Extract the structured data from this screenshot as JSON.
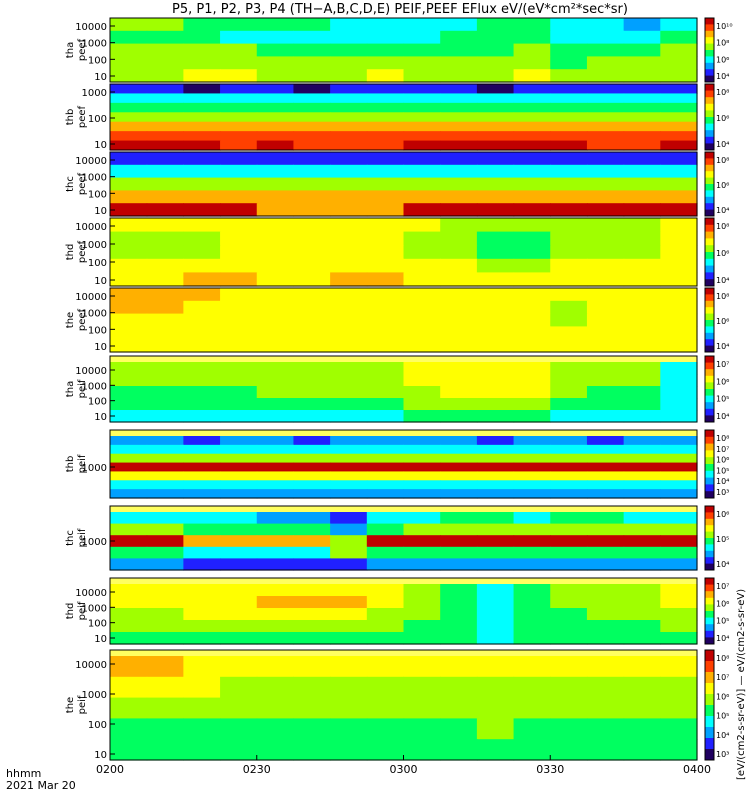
{
  "title": "P5, P1, P2, P3, P4 (TH−A,B,C,D,E) PEIF,PEEF EFlux eV/(eV*cm²*sec*sr)",
  "footer": {
    "axis_name": "hhmm",
    "date": "2021 Mar 20"
  },
  "colorbar_unit_label": "[eV/(cm2-s-sr-eV)] — eV/(cm2-s-sr-eV)",
  "colors": {
    "palette": [
      "#200060",
      "#2020ff",
      "#00a0ff",
      "#00ffff",
      "#00ff60",
      "#a0ff00",
      "#ffff00",
      "#ffb000",
      "#ff4000",
      "#c00000"
    ]
  },
  "chart_data": {
    "type": "heatmap",
    "x_ticks": [
      "0200",
      "0230",
      "0300",
      "0330",
      "0400"
    ],
    "panels": [
      {
        "label_1": "tha",
        "label_2": "peef",
        "y_ticks": [
          "10000",
          "1000",
          "100",
          "10"
        ],
        "cbar_ticks": [
          "10¹⁰",
          "10⁸",
          "10⁶",
          "10⁴"
        ],
        "rows": [
          [
            5,
            5,
            4,
            4,
            4,
            4,
            3,
            3,
            3,
            3,
            4,
            4,
            3,
            3,
            2,
            3
          ],
          [
            4,
            4,
            4,
            3,
            3,
            3,
            3,
            3,
            3,
            4,
            4,
            4,
            3,
            3,
            3,
            4
          ],
          [
            5,
            5,
            5,
            5,
            4,
            4,
            4,
            4,
            4,
            4,
            4,
            5,
            4,
            4,
            4,
            5
          ],
          [
            5,
            5,
            5,
            5,
            5,
            5,
            5,
            5,
            5,
            5,
            5,
            5,
            4,
            5,
            5,
            5
          ],
          [
            5,
            5,
            6,
            6,
            5,
            5,
            5,
            6,
            5,
            5,
            5,
            6,
            5,
            5,
            5,
            5
          ]
        ]
      },
      {
        "label_1": "thb",
        "label_2": "peef",
        "y_ticks": [
          "1000",
          "100",
          "10"
        ],
        "cbar_ticks": [
          "10⁸",
          "10⁶",
          "10⁴"
        ],
        "rows": [
          [
            1,
            1,
            0,
            1,
            1,
            0,
            1,
            1,
            1,
            1,
            0,
            1,
            1,
            1,
            1,
            1
          ],
          [
            3,
            3,
            3,
            3,
            3,
            3,
            3,
            3,
            3,
            3,
            3,
            3,
            3,
            3,
            3,
            3
          ],
          [
            4,
            4,
            4,
            4,
            4,
            4,
            4,
            4,
            4,
            4,
            4,
            4,
            4,
            4,
            4,
            4
          ],
          [
            5,
            5,
            5,
            5,
            5,
            5,
            5,
            5,
            5,
            5,
            5,
            5,
            5,
            5,
            5,
            5
          ],
          [
            7,
            7,
            7,
            7,
            7,
            7,
            7,
            7,
            7,
            7,
            7,
            7,
            7,
            7,
            7,
            7
          ],
          [
            8,
            8,
            8,
            8,
            8,
            8,
            8,
            8,
            8,
            8,
            8,
            8,
            8,
            8,
            8,
            8
          ],
          [
            9,
            9,
            9,
            8,
            9,
            8,
            8,
            8,
            9,
            9,
            9,
            9,
            9,
            8,
            8,
            9
          ]
        ]
      },
      {
        "label_1": "thc",
        "label_2": "peef",
        "y_ticks": [
          "10000",
          "1000",
          "100",
          "10"
        ],
        "cbar_ticks": [
          "10⁸",
          "10⁶",
          "10⁴"
        ],
        "rows": [
          [
            1,
            1,
            1,
            1,
            1,
            1,
            1,
            1,
            1,
            1,
            1,
            1,
            1,
            1,
            1,
            1
          ],
          [
            3,
            3,
            3,
            3,
            3,
            3,
            3,
            3,
            3,
            3,
            3,
            3,
            3,
            3,
            3,
            3
          ],
          [
            5,
            5,
            5,
            5,
            5,
            5,
            5,
            5,
            5,
            5,
            5,
            5,
            5,
            5,
            5,
            5
          ],
          [
            7,
            7,
            7,
            7,
            7,
            7,
            7,
            7,
            7,
            7,
            7,
            7,
            7,
            7,
            7,
            7
          ],
          [
            9,
            9,
            9,
            9,
            7,
            7,
            7,
            7,
            9,
            9,
            9,
            9,
            9,
            9,
            9,
            9
          ]
        ]
      },
      {
        "label_1": "thd",
        "label_2": "peef",
        "y_ticks": [
          "10000",
          "1000",
          "100",
          "10"
        ],
        "cbar_ticks": [
          "10⁸",
          "10⁶",
          "10⁴"
        ],
        "rows": [
          [
            6,
            6,
            6,
            6,
            6,
            6,
            6,
            6,
            6,
            5,
            5,
            5,
            5,
            5,
            5,
            6
          ],
          [
            5,
            5,
            5,
            6,
            6,
            6,
            6,
            6,
            5,
            5,
            4,
            4,
            5,
            5,
            5,
            6
          ],
          [
            5,
            5,
            5,
            6,
            6,
            6,
            6,
            6,
            5,
            5,
            4,
            4,
            5,
            5,
            5,
            6
          ],
          [
            6,
            6,
            6,
            6,
            6,
            6,
            6,
            6,
            6,
            6,
            5,
            5,
            6,
            6,
            6,
            6
          ],
          [
            6,
            6,
            7,
            7,
            6,
            6,
            7,
            7,
            6,
            6,
            6,
            6,
            6,
            6,
            6,
            6
          ]
        ]
      },
      {
        "label_1": "the",
        "label_2": "peef",
        "y_ticks": [
          "10000",
          "1000",
          "100",
          "10"
        ],
        "cbar_ticks": [
          "10⁸",
          "10⁶",
          "10⁴"
        ],
        "rows": [
          [
            7,
            7,
            7,
            6,
            6,
            6,
            6,
            6,
            6,
            6,
            6,
            6,
            6,
            6,
            6,
            6
          ],
          [
            7,
            7,
            6,
            6,
            6,
            6,
            6,
            6,
            6,
            6,
            6,
            6,
            5,
            6,
            6,
            6
          ],
          [
            6,
            6,
            6,
            6,
            6,
            6,
            6,
            6,
            6,
            6,
            6,
            6,
            5,
            6,
            6,
            6
          ],
          [
            6,
            6,
            6,
            6,
            6,
            6,
            6,
            6,
            6,
            6,
            6,
            6,
            6,
            6,
            6,
            6
          ],
          [
            6,
            6,
            6,
            6,
            6,
            6,
            6,
            6,
            6,
            6,
            6,
            6,
            6,
            6,
            6,
            6
          ]
        ]
      },
      {
        "label_1": "tha",
        "label_2": "peif",
        "y_ticks": [
          "10000",
          "1000",
          "100",
          "10"
        ],
        "cbar_ticks": [
          "10⁷",
          "10⁶",
          "10⁵",
          "10⁴"
        ],
        "rows": [
          [
            5,
            5,
            5,
            5,
            5,
            5,
            5,
            5,
            6,
            6,
            6,
            6,
            5,
            5,
            5,
            3
          ],
          [
            5,
            5,
            5,
            5,
            5,
            5,
            5,
            5,
            6,
            6,
            6,
            6,
            5,
            5,
            5,
            3
          ],
          [
            4,
            4,
            4,
            4,
            5,
            5,
            5,
            5,
            5,
            6,
            6,
            6,
            5,
            4,
            4,
            3
          ],
          [
            4,
            4,
            4,
            4,
            4,
            4,
            4,
            4,
            5,
            5,
            5,
            5,
            4,
            4,
            4,
            3
          ],
          [
            3,
            3,
            3,
            3,
            3,
            3,
            3,
            3,
            4,
            4,
            4,
            4,
            3,
            3,
            3,
            3
          ]
        ]
      },
      {
        "label_1": "thb",
        "label_2": "peif",
        "y_ticks": [
          "1000"
        ],
        "cbar_ticks": [
          "10⁸",
          "10⁷",
          "10⁶",
          "10⁵",
          "10⁴",
          "10³"
        ],
        "rows": [
          [
            2,
            2,
            1,
            2,
            2,
            1,
            2,
            2,
            2,
            2,
            1,
            2,
            2,
            1,
            2,
            2
          ],
          [
            3,
            3,
            3,
            3,
            3,
            3,
            3,
            3,
            3,
            3,
            3,
            3,
            3,
            3,
            3,
            3
          ],
          [
            5,
            5,
            5,
            5,
            5,
            5,
            5,
            5,
            5,
            5,
            5,
            5,
            5,
            5,
            5,
            5
          ],
          [
            9,
            9,
            9,
            9,
            9,
            9,
            9,
            9,
            9,
            9,
            9,
            9,
            9,
            9,
            9,
            9
          ],
          [
            6,
            6,
            6,
            6,
            6,
            6,
            6,
            6,
            6,
            6,
            6,
            6,
            6,
            6,
            6,
            6
          ],
          [
            3,
            3,
            3,
            3,
            3,
            3,
            3,
            3,
            3,
            3,
            3,
            3,
            3,
            3,
            3,
            3
          ],
          [
            2,
            2,
            2,
            2,
            2,
            2,
            2,
            2,
            2,
            2,
            2,
            2,
            2,
            2,
            2,
            2
          ]
        ]
      },
      {
        "label_1": "thc",
        "label_2": "peif",
        "y_ticks": [
          "1000"
        ],
        "cbar_ticks": [
          "10⁶",
          "10⁵",
          "10⁴"
        ],
        "rows": [
          [
            3,
            3,
            3,
            3,
            2,
            2,
            1,
            3,
            3,
            4,
            4,
            3,
            4,
            4,
            3,
            3
          ],
          [
            5,
            5,
            4,
            4,
            4,
            4,
            2,
            4,
            5,
            5,
            5,
            5,
            5,
            5,
            5,
            5
          ],
          [
            9,
            9,
            7,
            7,
            7,
            7,
            5,
            9,
            9,
            9,
            9,
            9,
            9,
            9,
            9,
            9
          ],
          [
            4,
            4,
            3,
            3,
            3,
            3,
            5,
            4,
            4,
            4,
            4,
            4,
            4,
            4,
            4,
            4
          ],
          [
            2,
            2,
            1,
            1,
            1,
            1,
            1,
            2,
            2,
            2,
            2,
            2,
            2,
            2,
            2,
            2
          ]
        ]
      },
      {
        "label_1": "thd",
        "label_2": "peif",
        "y_ticks": [
          "10000",
          "1000",
          "100",
          "10"
        ],
        "cbar_ticks": [
          "10⁷",
          "10⁶",
          "10⁵",
          "10⁴"
        ],
        "rows": [
          [
            6,
            6,
            6,
            6,
            6,
            6,
            6,
            6,
            5,
            4,
            3,
            4,
            5,
            5,
            5,
            6
          ],
          [
            6,
            6,
            6,
            6,
            7,
            7,
            7,
            6,
            5,
            4,
            3,
            4,
            5,
            5,
            5,
            6
          ],
          [
            5,
            5,
            6,
            6,
            6,
            6,
            6,
            5,
            5,
            4,
            3,
            4,
            4,
            5,
            5,
            5
          ],
          [
            5,
            5,
            5,
            5,
            5,
            5,
            5,
            5,
            4,
            4,
            3,
            4,
            4,
            4,
            4,
            5
          ],
          [
            4,
            4,
            4,
            4,
            4,
            4,
            4,
            4,
            4,
            4,
            3,
            4,
            4,
            4,
            4,
            4
          ]
        ]
      },
      {
        "label_1": "the",
        "label_2": "peif",
        "y_ticks": [
          "10000",
          "1000",
          "100",
          "10"
        ],
        "cbar_ticks": [
          "10⁸",
          "10⁷",
          "10⁶",
          "10⁵",
          "10⁴",
          "10³"
        ],
        "rows": [
          [
            7,
            7,
            6,
            6,
            6,
            6,
            6,
            6,
            6,
            6,
            6,
            6,
            6,
            6,
            6,
            6
          ],
          [
            6,
            6,
            6,
            5,
            5,
            5,
            5,
            5,
            5,
            5,
            5,
            5,
            5,
            5,
            5,
            5
          ],
          [
            5,
            5,
            5,
            5,
            5,
            5,
            5,
            5,
            5,
            5,
            5,
            5,
            5,
            5,
            5,
            5
          ],
          [
            4,
            4,
            4,
            4,
            4,
            4,
            4,
            4,
            4,
            4,
            5,
            4,
            4,
            4,
            4,
            4
          ],
          [
            4,
            4,
            4,
            4,
            4,
            4,
            4,
            4,
            4,
            4,
            4,
            4,
            4,
            4,
            4,
            4
          ]
        ]
      }
    ]
  }
}
